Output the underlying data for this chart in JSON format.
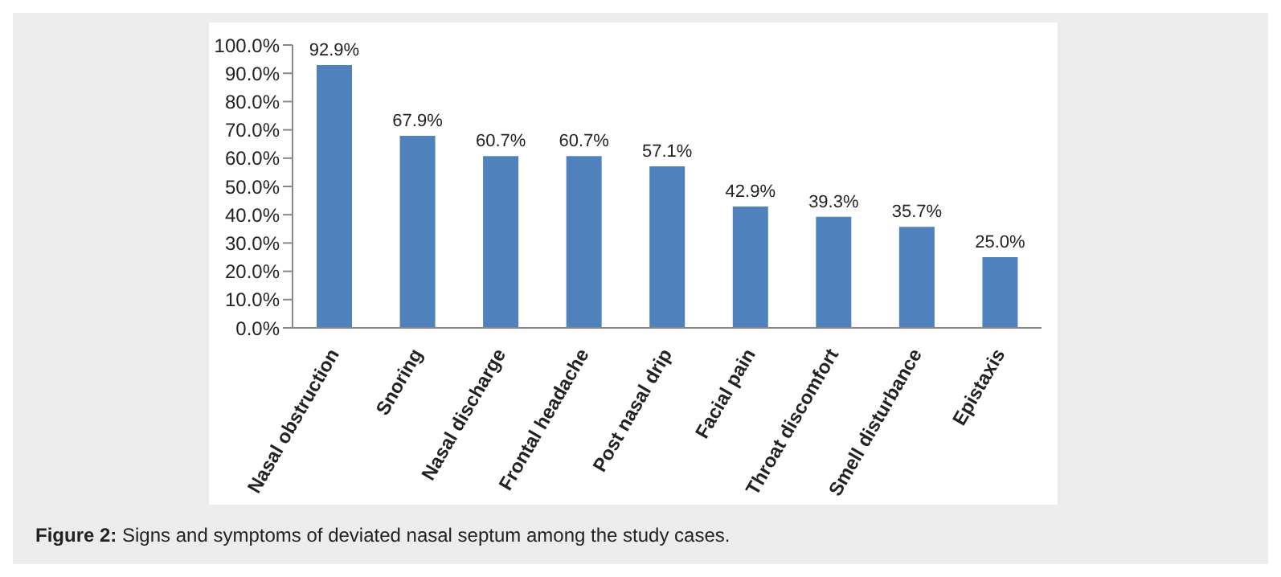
{
  "chart_data": {
    "type": "bar",
    "categories": [
      "Nasal obstruction",
      "Snoring",
      "Nasal discharge",
      "Frontal headache",
      "Post nasal drip",
      "Facial pain",
      "Throat discomfort",
      "Smell disturbance",
      "Epistaxis"
    ],
    "values": [
      92.9,
      67.9,
      60.7,
      60.7,
      57.1,
      42.9,
      39.3,
      35.7,
      25.0
    ],
    "value_labels": [
      "92.9%",
      "67.9%",
      "60.7%",
      "60.7%",
      "57.1%",
      "42.9%",
      "39.3%",
      "35.7%",
      "25.0%"
    ],
    "color": "#4f81bd",
    "ylim": [
      0,
      100
    ],
    "yticks": [
      {
        "value": 0,
        "label": "0.0%"
      },
      {
        "value": 10,
        "label": "10.0%"
      },
      {
        "value": 20,
        "label": "20.0%"
      },
      {
        "value": 30,
        "label": "30.0%"
      },
      {
        "value": 40,
        "label": "40.0%"
      },
      {
        "value": 50,
        "label": "50.0%"
      },
      {
        "value": 60,
        "label": "60.0%"
      },
      {
        "value": 70,
        "label": "70.0%"
      },
      {
        "value": 80,
        "label": "80.0%"
      },
      {
        "value": 90,
        "label": "90.0%"
      },
      {
        "value": 100,
        "label": "100.0%"
      }
    ],
    "grid": false,
    "legend": false,
    "annotations": [
      "Figure 2: Signs and symptoms of deviated nasal septum among the study cases."
    ]
  }
}
